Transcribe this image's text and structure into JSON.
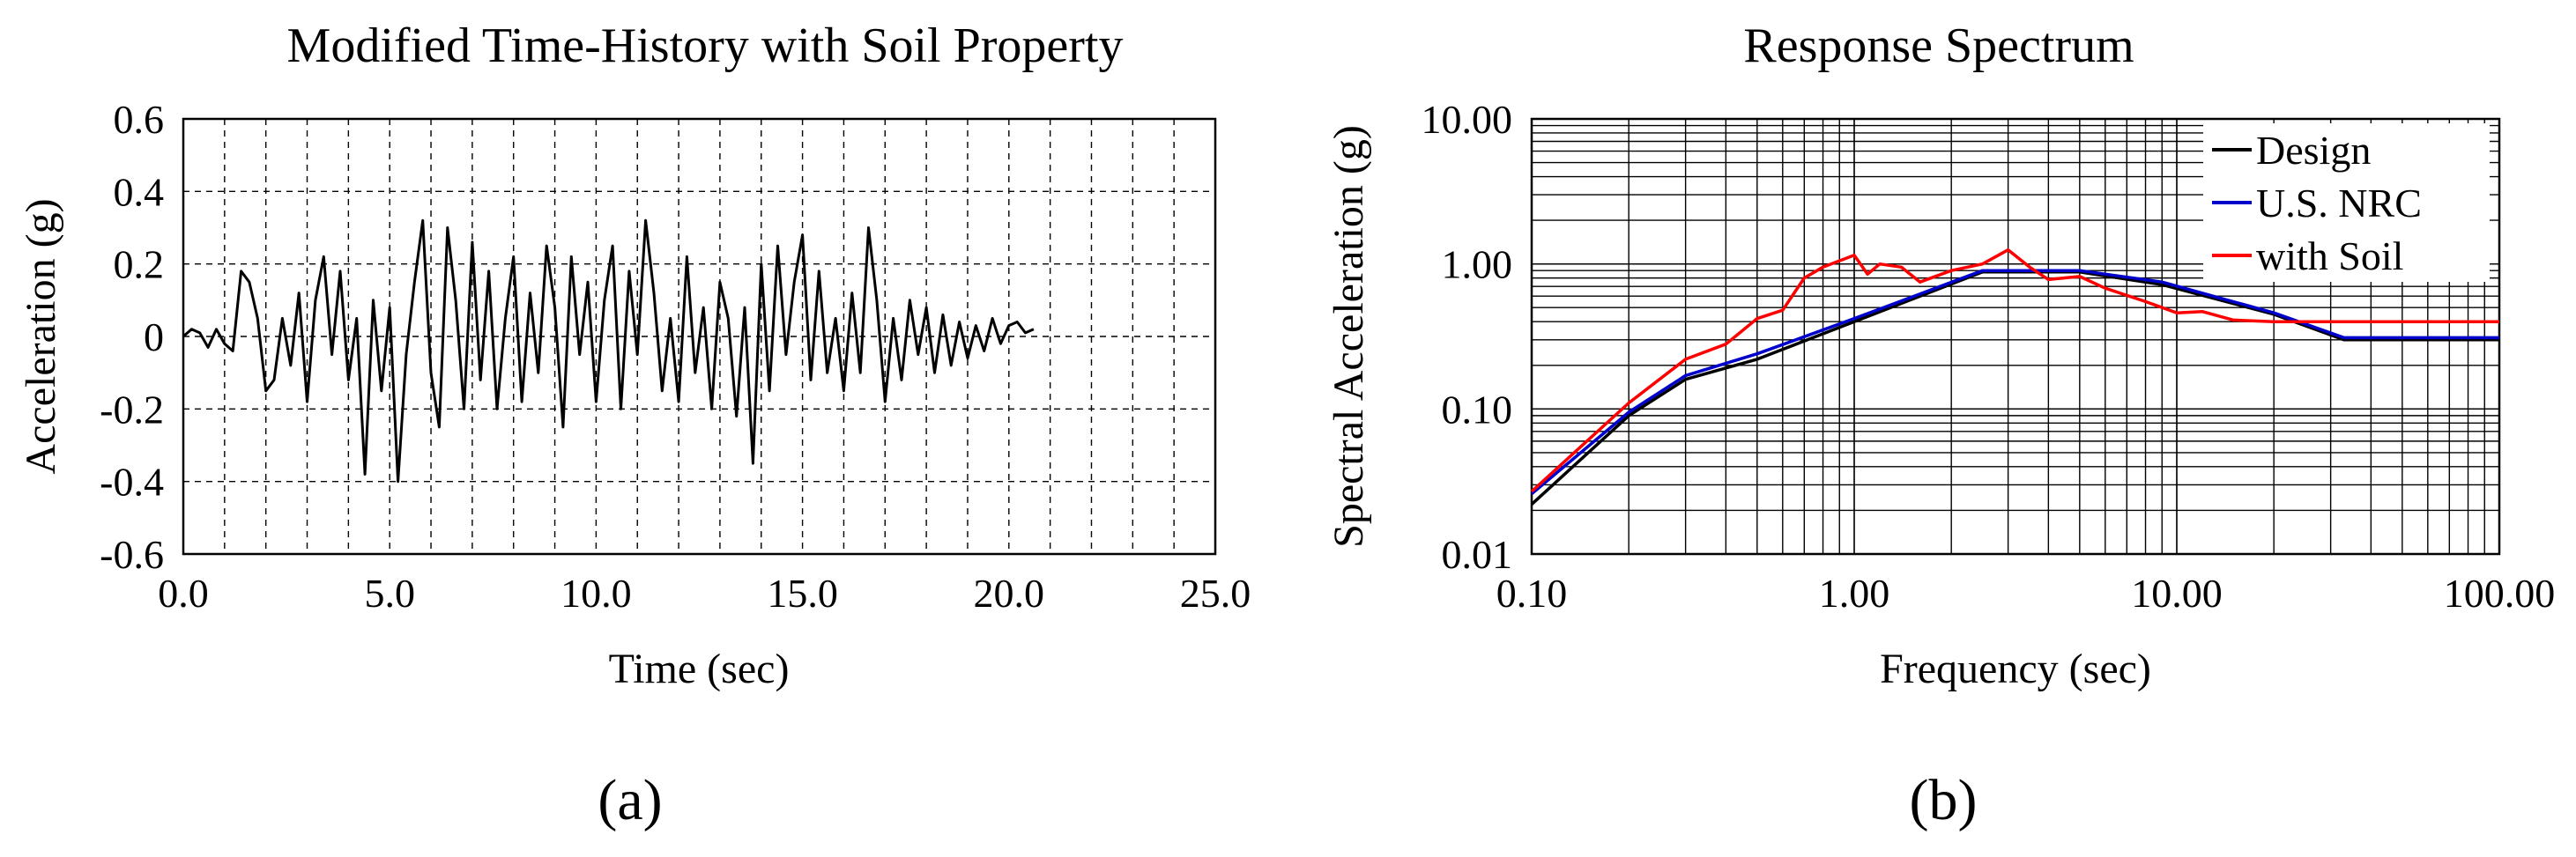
{
  "chart_data": [
    {
      "id": "a",
      "type": "line",
      "panel_label": "(a)",
      "title": "Modified Time-History with Soil Property",
      "xlabel": "Time (sec)",
      "ylabel": "Acceleration (g)",
      "xlim": [
        0,
        25
      ],
      "ylim": [
        -0.6,
        0.6
      ],
      "xticks": [
        "0.0",
        "5.0",
        "10.0",
        "15.0",
        "20.0",
        "25.0"
      ],
      "yticks": [
        "0.6",
        "0.4",
        "0.2",
        "0",
        "-0.2",
        "-0.4",
        "-0.6"
      ],
      "grid": "dashed, major x every 1.0 s, y every 0.2 g",
      "series": [
        {
          "name": "Acceleration",
          "color": "#000000",
          "x": [
            0.0,
            0.2,
            0.4,
            0.6,
            0.8,
            1.0,
            1.2,
            1.4,
            1.6,
            1.8,
            2.0,
            2.2,
            2.4,
            2.6,
            2.8,
            3.0,
            3.2,
            3.4,
            3.6,
            3.8,
            4.0,
            4.2,
            4.4,
            4.6,
            4.8,
            5.0,
            5.2,
            5.4,
            5.6,
            5.8,
            6.0,
            6.2,
            6.4,
            6.6,
            6.8,
            7.0,
            7.2,
            7.4,
            7.6,
            7.8,
            8.0,
            8.2,
            8.4,
            8.6,
            8.8,
            9.0,
            9.2,
            9.4,
            9.6,
            9.8,
            10.0,
            10.2,
            10.4,
            10.6,
            10.8,
            11.0,
            11.2,
            11.4,
            11.6,
            11.8,
            12.0,
            12.2,
            12.4,
            12.6,
            12.8,
            13.0,
            13.2,
            13.4,
            13.6,
            13.8,
            14.0,
            14.2,
            14.4,
            14.6,
            14.8,
            15.0,
            15.2,
            15.4,
            15.6,
            15.8,
            16.0,
            16.2,
            16.4,
            16.6,
            16.8,
            17.0,
            17.2,
            17.4,
            17.6,
            17.8,
            18.0,
            18.2,
            18.4,
            18.6,
            18.8,
            19.0,
            19.2,
            19.4,
            19.6,
            19.8,
            20.0,
            20.2,
            20.4,
            20.6
          ],
          "values": [
            0.0,
            0.02,
            0.01,
            -0.03,
            0.02,
            -0.02,
            -0.04,
            0.18,
            0.15,
            0.05,
            -0.15,
            -0.12,
            0.05,
            -0.08,
            0.12,
            -0.18,
            0.1,
            0.22,
            -0.05,
            0.18,
            -0.12,
            0.05,
            -0.38,
            0.1,
            -0.15,
            0.08,
            -0.4,
            -0.05,
            0.15,
            0.32,
            -0.1,
            -0.25,
            0.3,
            0.1,
            -0.2,
            0.26,
            -0.12,
            0.18,
            -0.2,
            0.05,
            0.22,
            -0.18,
            0.12,
            -0.1,
            0.25,
            0.08,
            -0.25,
            0.22,
            -0.05,
            0.15,
            -0.18,
            0.1,
            0.25,
            -0.2,
            0.18,
            -0.05,
            0.32,
            0.12,
            -0.15,
            0.05,
            -0.18,
            0.22,
            -0.1,
            0.08,
            -0.2,
            0.15,
            0.05,
            -0.22,
            0.08,
            -0.35,
            0.2,
            -0.15,
            0.25,
            -0.05,
            0.15,
            0.28,
            -0.12,
            0.18,
            -0.1,
            0.05,
            -0.15,
            0.12,
            -0.1,
            0.3,
            0.1,
            -0.18,
            0.05,
            -0.12,
            0.1,
            -0.05,
            0.08,
            -0.1,
            0.06,
            -0.08,
            0.04,
            -0.06,
            0.03,
            -0.04,
            0.05,
            -0.02,
            0.03,
            0.04,
            0.01,
            0.02
          ]
        }
      ]
    },
    {
      "id": "b",
      "type": "line",
      "panel_label": "(b)",
      "title": "Response Spectrum",
      "xlabel": "Frequency (sec)",
      "ylabel": "Spectral Acceleration (g)",
      "xscale": "log",
      "yscale": "log",
      "xlim": [
        0.1,
        100
      ],
      "ylim": [
        0.01,
        10
      ],
      "xticks": [
        "0.10",
        "1.00",
        "10.00",
        "100.00"
      ],
      "yticks": [
        "10.00",
        "1.00",
        "0.10",
        "0.01"
      ],
      "grid": "solid, log-minor lines on both axes",
      "legend": "top-right",
      "series": [
        {
          "name": "Design",
          "color": "#000000",
          "x": [
            0.1,
            0.2,
            0.3,
            0.5,
            1.0,
            2.5,
            5.0,
            9.0,
            20.0,
            33.0,
            100.0
          ],
          "values": [
            0.022,
            0.09,
            0.16,
            0.22,
            0.4,
            0.88,
            0.88,
            0.72,
            0.45,
            0.3,
            0.3
          ]
        },
        {
          "name": "U.S. NRC",
          "color": "#0000cc",
          "x": [
            0.1,
            0.2,
            0.3,
            0.5,
            1.0,
            2.5,
            5.0,
            9.0,
            20.0,
            33.0,
            100.0
          ],
          "values": [
            0.026,
            0.095,
            0.17,
            0.24,
            0.42,
            0.9,
            0.9,
            0.75,
            0.46,
            0.31,
            0.31
          ]
        },
        {
          "name": "with Soil",
          "color": "#ff0000",
          "x": [
            0.1,
            0.2,
            0.3,
            0.4,
            0.5,
            0.6,
            0.7,
            0.8,
            1.0,
            1.1,
            1.2,
            1.4,
            1.6,
            2.0,
            2.5,
            3.0,
            3.5,
            4.0,
            5.0,
            6.0,
            8.0,
            10.0,
            12.0,
            15.0,
            20.0,
            30.0,
            100.0
          ],
          "values": [
            0.027,
            0.11,
            0.22,
            0.28,
            0.42,
            0.48,
            0.8,
            0.95,
            1.15,
            0.85,
            1.0,
            0.95,
            0.75,
            0.9,
            1.0,
            1.25,
            0.95,
            0.78,
            0.82,
            0.68,
            0.55,
            0.46,
            0.47,
            0.41,
            0.4,
            0.4,
            0.4
          ]
        }
      ]
    }
  ]
}
